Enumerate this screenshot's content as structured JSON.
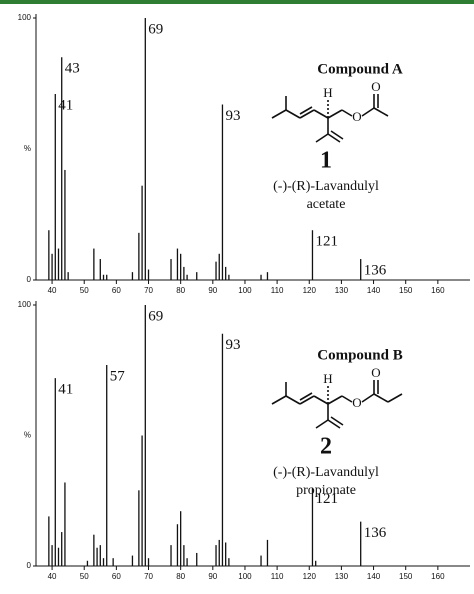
{
  "chart_data": [
    {
      "type": "bar",
      "color": "#111111",
      "x": [
        39,
        40,
        41,
        42,
        43,
        44,
        45,
        53,
        55,
        56,
        57,
        65,
        67,
        68,
        69,
        70,
        77,
        79,
        80,
        81,
        82,
        85,
        91,
        92,
        93,
        94,
        95,
        105,
        107,
        121,
        136
      ],
      "values": [
        19,
        10,
        71,
        12,
        85,
        42,
        3,
        12,
        8,
        2,
        2,
        3,
        18,
        36,
        100,
        4,
        8,
        12,
        10,
        5,
        2,
        3,
        7,
        10,
        67,
        5,
        2,
        2,
        3,
        19,
        8
      ],
      "xlim": [
        35,
        170
      ],
      "ylim": [
        0,
        100
      ],
      "xticks": [
        40,
        50,
        60,
        70,
        80,
        90,
        100,
        110,
        120,
        130,
        140,
        150,
        160
      ],
      "yticks": [
        0,
        100
      ],
      "ylabel": "%",
      "labeled_peaks": [
        41,
        43,
        69,
        93,
        121,
        136
      ],
      "compound": "Compound A",
      "number": "1",
      "name": "(-)-(R)-Lavandulyl",
      "name2": "acetate"
    },
    {
      "type": "bar",
      "color": "#111111",
      "x": [
        39,
        40,
        41,
        42,
        43,
        44,
        51,
        53,
        54,
        55,
        56,
        57,
        59,
        65,
        67,
        68,
        69,
        70,
        77,
        79,
        80,
        81,
        82,
        85,
        91,
        92,
        93,
        94,
        95,
        105,
        107,
        121,
        122,
        136
      ],
      "values": [
        19,
        8,
        72,
        7,
        13,
        32,
        2,
        12,
        7,
        8,
        3,
        77,
        3,
        4,
        29,
        50,
        100,
        3,
        8,
        16,
        21,
        8,
        3,
        5,
        8,
        10,
        89,
        9,
        3,
        4,
        10,
        30,
        2,
        17
      ],
      "xlim": [
        35,
        170
      ],
      "ylim": [
        0,
        100
      ],
      "xticks": [
        40,
        50,
        60,
        70,
        80,
        90,
        100,
        110,
        120,
        130,
        140,
        150,
        160
      ],
      "yticks": [
        0,
        100
      ],
      "ylabel": "%",
      "labeled_peaks": [
        41,
        57,
        69,
        93,
        121,
        136
      ],
      "compound": "Compound B",
      "number": "2",
      "name": "(-)-(R)-Lavandulyl",
      "name2": "propionate"
    }
  ]
}
